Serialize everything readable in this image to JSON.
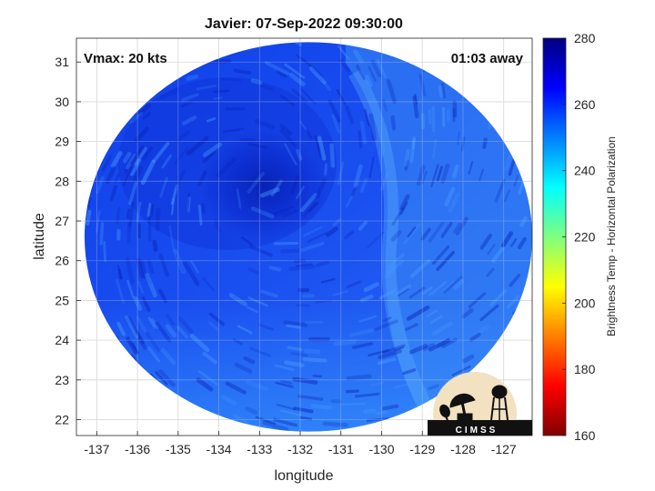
{
  "chart_data": {
    "type": "heatmap",
    "title": "Javier: 07-Sep-2022 09:30:00",
    "xlabel": "longitude",
    "ylabel": "latitude",
    "xlim": [
      -137.5,
      -126.3
    ],
    "ylim": [
      21.6,
      31.6
    ],
    "xticks": [
      -137,
      -136,
      -135,
      -134,
      -133,
      -132,
      -131,
      -130,
      -129,
      -128,
      -127
    ],
    "yticks": [
      22,
      23,
      24,
      25,
      26,
      27,
      28,
      29,
      30,
      31
    ],
    "grid": true,
    "annotations": {
      "vmax": "Vmax: 20 kts",
      "time_offset": "01:03 away"
    },
    "colorbar": {
      "label": "Brightness Temp - Horizontal Polarization",
      "range": [
        160,
        280
      ],
      "ticks": [
        160,
        180,
        200,
        220,
        240,
        260,
        280
      ],
      "colormap": "jet"
    },
    "swath": {
      "center": [
        -131.8,
        26.6
      ],
      "radius_lon": 5.5,
      "radius_lat": 4.9,
      "storm_center": [
        -132.9,
        27.9
      ]
    },
    "logo": {
      "text": "CIMSS"
    }
  }
}
